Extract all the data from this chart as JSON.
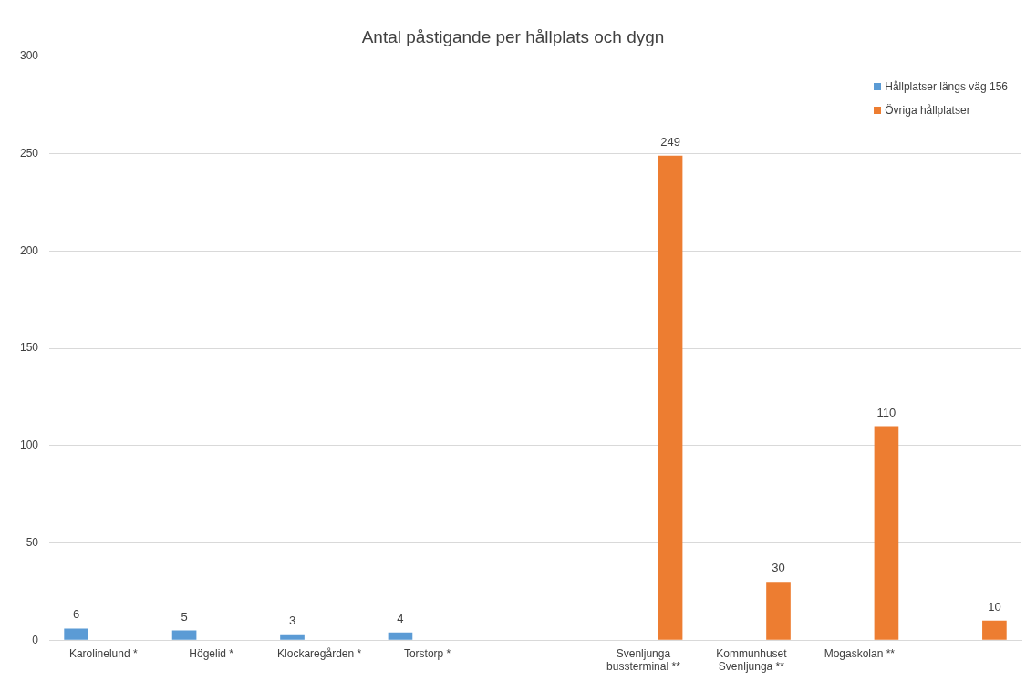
{
  "chart_data": {
    "type": "bar",
    "title": "Antal påstigande per hållplats och dygn",
    "categories": [
      "Karolinelund *",
      "Högelid *",
      "Klockaregården *",
      "Torstorp *",
      null,
      "Svenljunga bussterminal **",
      "Kommunhuset Svenljunga **",
      "Mogaskolan **",
      null
    ],
    "series": [
      {
        "name": "Hållplatser längs väg 156",
        "color": "#5b9bd5",
        "values": [
          6,
          5,
          3,
          4,
          null,
          null,
          null,
          null,
          null
        ]
      },
      {
        "name": "Övriga hållplatser",
        "color": "#ed7d31",
        "values": [
          null,
          null,
          null,
          null,
          null,
          249,
          30,
          110,
          10
        ]
      }
    ],
    "ylim": [
      0,
      300
    ],
    "yticks": [
      0,
      50,
      100,
      150,
      200,
      250,
      300
    ],
    "grid": "y",
    "legend": "top right",
    "data_labels": true
  }
}
